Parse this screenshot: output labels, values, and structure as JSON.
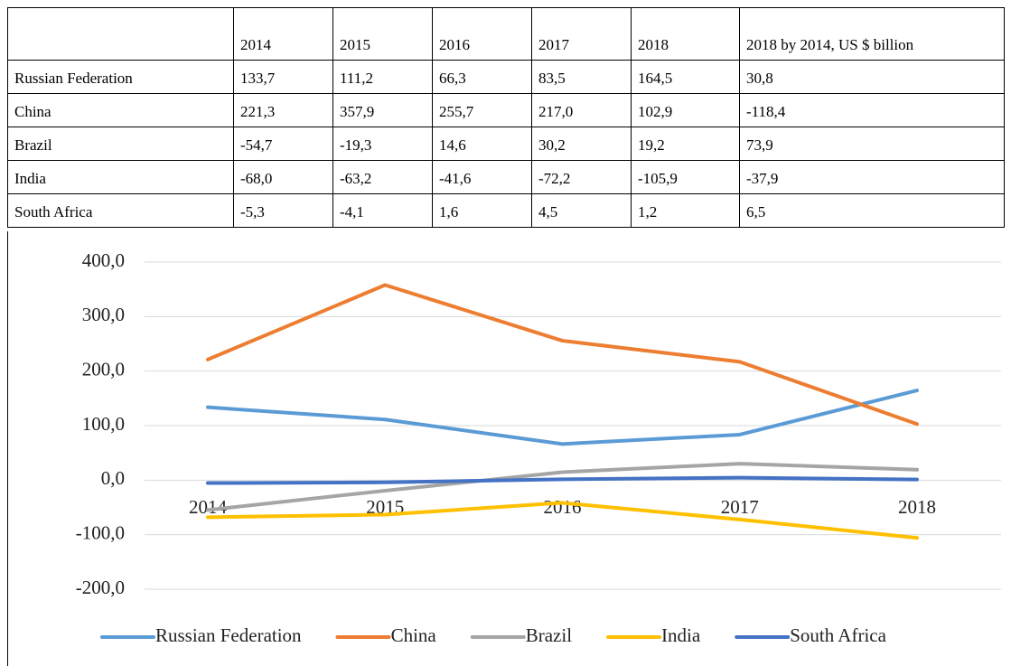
{
  "table": {
    "header": [
      "2014",
      "2015",
      "2016",
      "2017",
      "2018",
      "2018 by 2014, US $ billion"
    ],
    "rows": [
      [
        "Russian Federation",
        "133,7",
        "111,2",
        "66,3",
        "83,5",
        "164,5",
        "30,8"
      ],
      [
        "China",
        "221,3",
        "357,9",
        "255,7",
        "217,0",
        "102,9",
        "-118,4"
      ],
      [
        "Brazil",
        "-54,7",
        "-19,3",
        "14,6",
        "30,2",
        "19,2",
        "73,9"
      ],
      [
        "India",
        "-68,0",
        "-63,2",
        "-41,6",
        "-72,2",
        "-105,9",
        "-37,9"
      ],
      [
        "South Africa",
        "-5,3",
        "-4,1",
        "1,6",
        "4,5",
        "1,2",
        "6,5"
      ]
    ]
  },
  "chart_data": {
    "type": "line",
    "categories": [
      "2014",
      "2015",
      "2016",
      "2017",
      "2018"
    ],
    "series": [
      {
        "name": "Russian Federation",
        "color": "#5b9bd5",
        "values": [
          133.7,
          111.2,
          66.3,
          83.5,
          164.5
        ]
      },
      {
        "name": "China",
        "color": "#ed7d31",
        "values": [
          221.3,
          357.9,
          255.7,
          217.0,
          102.9
        ]
      },
      {
        "name": "Brazil",
        "color": "#a5a5a5",
        "values": [
          -54.7,
          -19.3,
          14.6,
          30.2,
          19.2
        ]
      },
      {
        "name": "India",
        "color": "#ffc000",
        "values": [
          -68.0,
          -63.2,
          -41.6,
          -72.2,
          -105.9
        ]
      },
      {
        "name": "South Africa",
        "color": "#4472c4",
        "values": [
          -5.3,
          -4.1,
          1.6,
          4.5,
          1.2
        ]
      }
    ],
    "ylim": [
      -200,
      400
    ],
    "yticks": [
      {
        "value": -200,
        "label": "-200,0"
      },
      {
        "value": -100,
        "label": "-100,0"
      },
      {
        "value": 0,
        "label": "0,0"
      },
      {
        "value": 100,
        "label": "100,0"
      },
      {
        "value": 200,
        "label": "200,0"
      },
      {
        "value": 300,
        "label": "300,0"
      },
      {
        "value": 400,
        "label": "400,0"
      }
    ],
    "grid": true,
    "legend": "bottom"
  }
}
